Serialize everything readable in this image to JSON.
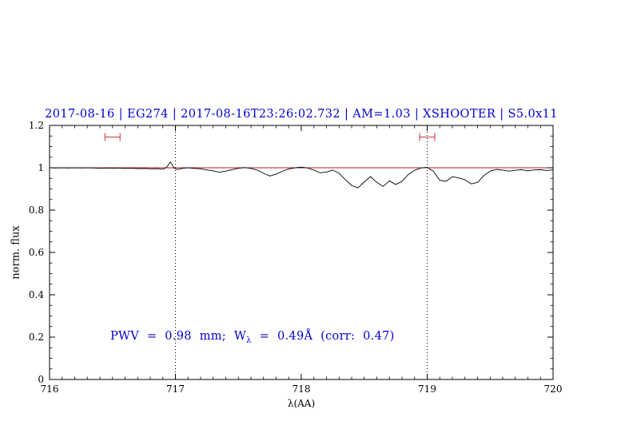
{
  "title": "2017-08-16 | EG274 | 2017-08-16T23:26:02.732 | AM=1.03 | XSHOOTER | S5.0x11",
  "xlabel": "λ(AA)",
  "ylabel": "norm. flux",
  "annotation": {
    "full": "PWV = 0.98 mm; Wλ = 0.49Å (corr: 0.47)",
    "pre": "PWV = 0.98 mm; W",
    "sub": "λ",
    "post": " = 0.49Å (corr: 0.47)"
  },
  "colors": {
    "title": "#0000cd",
    "annotation": "#0000cd",
    "spectrum": "#000000",
    "continuum_line": "#b22222",
    "range_marker": "#cc4444",
    "frame": "#000000",
    "dotted_line": "#000000"
  },
  "chart_data": {
    "type": "line",
    "title": "2017-08-16 | EG274 | 2017-08-16T23:26:02.732 | AM=1.03 | XSHOOTER | S5.0x11",
    "xlabel": "λ(AA)",
    "ylabel": "norm. flux",
    "xlim": [
      716,
      720
    ],
    "ylim": [
      0,
      1.2
    ],
    "x_ticks": [
      716,
      717,
      718,
      719,
      720
    ],
    "x_tick_labels": [
      "716",
      "717",
      "718",
      "719",
      "720"
    ],
    "x_minor_step": 0.1,
    "y_ticks": [
      0,
      0.2,
      0.4,
      0.6,
      0.8,
      1,
      1.2
    ],
    "y_tick_labels": [
      "0",
      "0.2",
      "0.4",
      "0.6",
      "0.8",
      "1",
      "1.2"
    ],
    "y_minor_step": 0.05,
    "grid": false,
    "dotted_vlines": [
      717,
      719
    ],
    "continuum_y": 1.0,
    "range_markers": [
      {
        "x_start": 716.44,
        "x_end": 716.56,
        "y": 1.145
      },
      {
        "x_start": 718.94,
        "x_end": 719.06,
        "y": 1.145
      }
    ],
    "series": [
      {
        "name": "spectrum",
        "points": [
          [
            716.0,
            1.0
          ],
          [
            716.05,
            0.999
          ],
          [
            716.1,
            1.0
          ],
          [
            716.15,
            0.999
          ],
          [
            716.2,
            1.0
          ],
          [
            716.25,
            0.999
          ],
          [
            716.3,
            1.0
          ],
          [
            716.35,
            0.999
          ],
          [
            716.4,
            0.998
          ],
          [
            716.45,
            0.999
          ],
          [
            716.5,
            0.998
          ],
          [
            716.55,
            0.999
          ],
          [
            716.6,
            0.997
          ],
          [
            716.65,
            0.998
          ],
          [
            716.7,
            0.996
          ],
          [
            716.75,
            0.997
          ],
          [
            716.8,
            0.995
          ],
          [
            716.85,
            0.996
          ],
          [
            716.9,
            0.993
          ],
          [
            716.93,
            1.002
          ],
          [
            716.96,
            1.028
          ],
          [
            716.99,
            0.998
          ],
          [
            717.02,
            0.992
          ],
          [
            717.06,
            0.998
          ],
          [
            717.1,
            1.0
          ],
          [
            717.15,
            0.997
          ],
          [
            717.2,
            0.995
          ],
          [
            717.25,
            0.99
          ],
          [
            717.3,
            0.985
          ],
          [
            717.35,
            0.979
          ],
          [
            717.4,
            0.984
          ],
          [
            717.45,
            0.991
          ],
          [
            717.5,
            0.998
          ],
          [
            717.55,
            1.001
          ],
          [
            717.6,
            0.997
          ],
          [
            717.65,
            0.989
          ],
          [
            717.7,
            0.974
          ],
          [
            717.75,
            0.961
          ],
          [
            717.8,
            0.97
          ],
          [
            717.85,
            0.984
          ],
          [
            717.9,
            0.994
          ],
          [
            717.95,
            1.0
          ],
          [
            718.0,
            1.003
          ],
          [
            718.05,
            0.999
          ],
          [
            718.1,
            0.989
          ],
          [
            718.15,
            0.976
          ],
          [
            718.2,
            0.98
          ],
          [
            718.25,
            0.989
          ],
          [
            718.3,
            0.974
          ],
          [
            718.35,
            0.944
          ],
          [
            718.4,
            0.916
          ],
          [
            718.45,
            0.905
          ],
          [
            718.5,
            0.933
          ],
          [
            718.55,
            0.958
          ],
          [
            718.6,
            0.931
          ],
          [
            718.65,
            0.912
          ],
          [
            718.7,
            0.938
          ],
          [
            718.75,
            0.921
          ],
          [
            718.8,
            0.936
          ],
          [
            718.85,
            0.968
          ],
          [
            718.9,
            0.988
          ],
          [
            718.95,
            0.999
          ],
          [
            719.0,
            1.002
          ],
          [
            719.05,
            0.983
          ],
          [
            719.1,
            0.941
          ],
          [
            719.15,
            0.936
          ],
          [
            719.2,
            0.958
          ],
          [
            719.25,
            0.952
          ],
          [
            719.3,
            0.943
          ],
          [
            719.35,
            0.924
          ],
          [
            719.4,
            0.931
          ],
          [
            719.45,
            0.963
          ],
          [
            719.5,
            0.984
          ],
          [
            719.55,
            0.992
          ],
          [
            719.6,
            0.989
          ],
          [
            719.65,
            0.984
          ],
          [
            719.7,
            0.988
          ],
          [
            719.75,
            0.991
          ],
          [
            719.8,
            0.985
          ],
          [
            719.85,
            0.99
          ],
          [
            719.9,
            0.991
          ],
          [
            719.95,
            0.987
          ],
          [
            720.0,
            0.99
          ]
        ]
      }
    ]
  }
}
